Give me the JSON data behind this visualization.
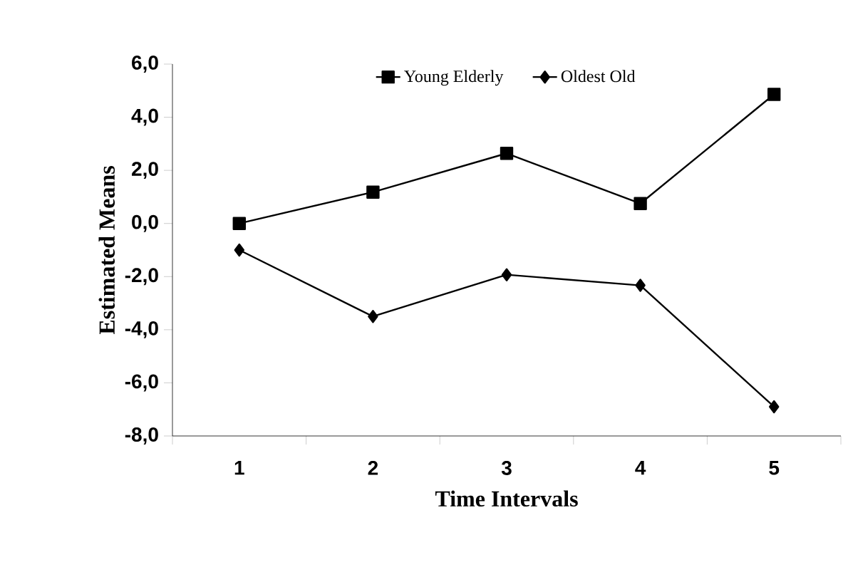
{
  "chart_data": {
    "type": "line",
    "xlabel": "Time Intervals",
    "ylabel": "Estimated Means",
    "categories": [
      "1",
      "2",
      "3",
      "4",
      "5"
    ],
    "series": [
      {
        "name": "Young Elderly",
        "color": "#000000",
        "marker": "square",
        "values": [
          0.0,
          1.18,
          2.64,
          0.75,
          4.86
        ]
      },
      {
        "name": "Oldest Old",
        "color": "#000000",
        "marker": "diamond",
        "values": [
          -1.0,
          -3.5,
          -1.93,
          -2.33,
          -6.9
        ]
      }
    ],
    "ylim": [
      -8,
      6
    ],
    "yticks": [
      {
        "value": -8,
        "label": "-8,0"
      },
      {
        "value": -6,
        "label": "-6,0"
      },
      {
        "value": -4,
        "label": "-4,0"
      },
      {
        "value": -2,
        "label": "-2,0"
      },
      {
        "value": 0,
        "label": "0,0"
      },
      {
        "value": 2,
        "label": "2,0"
      },
      {
        "value": 4,
        "label": "4,0"
      },
      {
        "value": 6,
        "label": "6,0"
      }
    ],
    "legend": "top",
    "grid": false,
    "line_style": "solid"
  }
}
